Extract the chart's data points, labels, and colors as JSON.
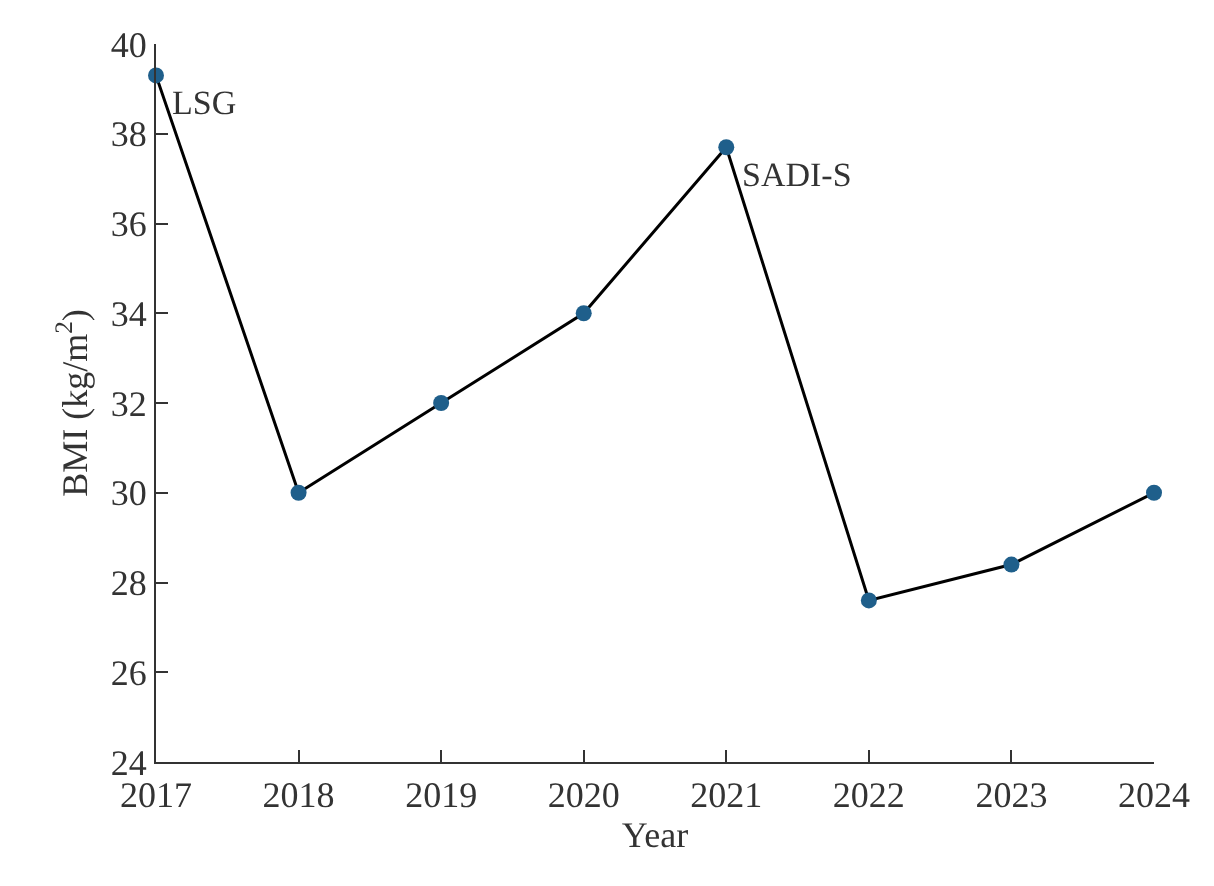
{
  "chart_data": {
    "type": "line",
    "xlabel": "Year",
    "ylabel": "BMI (kg/m$^{2}$)",
    "x": [
      2017,
      2018,
      2019,
      2020,
      2021,
      2022,
      2023,
      2024
    ],
    "series": [
      {
        "color": "#1f5f8b",
        "values": [
          39.3,
          30.0,
          32.0,
          34.0,
          37.7,
          27.6,
          28.4,
          30.0
        ]
      }
    ],
    "xlim": [
      2017,
      2024
    ],
    "xticks": [
      2017,
      2018,
      2019,
      2020,
      2021,
      2022,
      2023,
      2024
    ],
    "ylim": [
      24,
      40
    ],
    "yticks": [
      24,
      26,
      28,
      30,
      32,
      34,
      36,
      38,
      40
    ],
    "annotations": [
      {
        "text": "LSG",
        "x": 2017,
        "y": 39.3
      },
      {
        "text": "SADI-S",
        "x": 2021,
        "y": 37.7
      }
    ],
    "marker": "circle",
    "line_style": "solid"
  }
}
